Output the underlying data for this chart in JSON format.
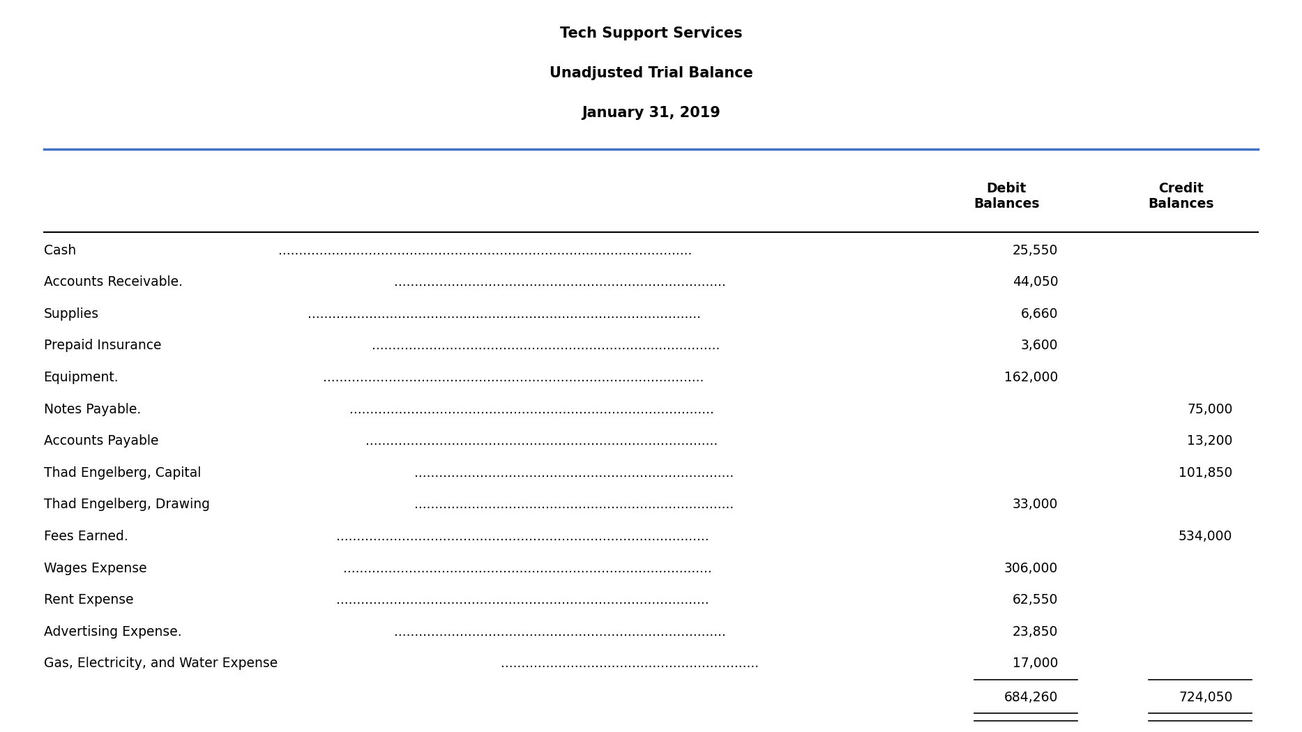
{
  "title_line1": "Tech Support Services",
  "title_line2": "Unadjusted Trial Balance",
  "title_line3": "January 31, 2019",
  "col_header1": "Debit\nBalances",
  "col_header2": "Credit\nBalances",
  "rows": [
    {
      "account": "Cash",
      "dots": true,
      "debit": "25,550",
      "credit": ""
    },
    {
      "account": "Accounts Receivable.",
      "dots": true,
      "debit": "44,050",
      "credit": ""
    },
    {
      "account": "Supplies",
      "dots": true,
      "debit": "6,660",
      "credit": ""
    },
    {
      "account": "Prepaid Insurance",
      "dots": true,
      "debit": "3,600",
      "credit": ""
    },
    {
      "account": "Equipment.",
      "dots": true,
      "debit": "162,000",
      "credit": ""
    },
    {
      "account": "Notes Payable.",
      "dots": true,
      "debit": "",
      "credit": "75,000"
    },
    {
      "account": "Accounts Payable",
      "dots": true,
      "debit": "",
      "credit": "13,200"
    },
    {
      "account": "Thad Engelberg, Capital",
      "dots": true,
      "debit": "",
      "credit": "101,850"
    },
    {
      "account": "Thad Engelberg, Drawing",
      "dots": true,
      "debit": "33,000",
      "credit": ""
    },
    {
      "account": "Fees Earned.",
      "dots": true,
      "debit": "",
      "credit": "534,000"
    },
    {
      "account": "Wages Expense",
      "dots": true,
      "debit": "306,000",
      "credit": ""
    },
    {
      "account": "Rent Expense",
      "dots": true,
      "debit": "62,550",
      "credit": ""
    },
    {
      "account": "Advertising Expense.",
      "dots": true,
      "debit": "23,850",
      "credit": ""
    },
    {
      "account": "Gas, Electricity, and Water Expense",
      "dots": true,
      "debit": "17,000",
      "credit": ""
    }
  ],
  "total_debit": "684,260",
  "total_credit": "724,050",
  "bg_color": "#ffffff",
  "text_color": "#000000",
  "header_line_color": "#4472C4",
  "table_line_color": "#000000",
  "font_size": 13.5,
  "title_font_size": 15,
  "header_font_size": 13.5
}
